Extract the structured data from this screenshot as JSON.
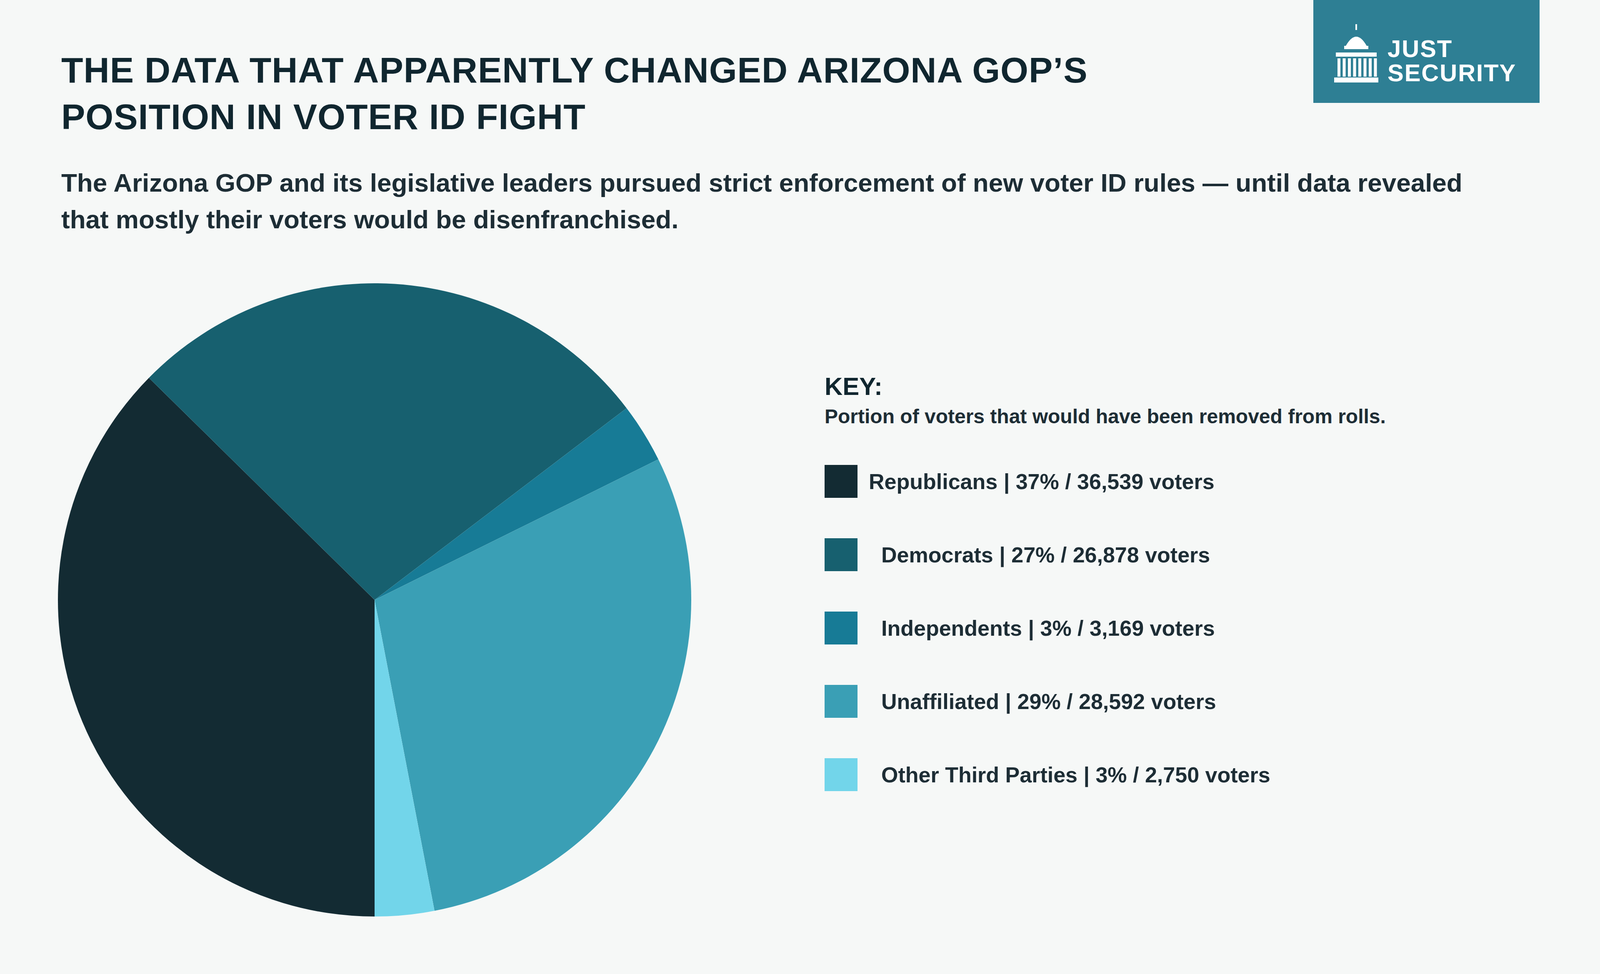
{
  "chart_data": {
    "type": "pie",
    "title": "THE DATA THAT APPARENTLY CHANGED ARIZONA GOP’S POSITION IN VOTER ID FIGHT",
    "subtitle": "The Arizona GOP and its legislative leaders pursued strict enforcement of new voter ID rules — until data revealed that mostly their voters would be disenfranchised.",
    "logo": "JUST SECURITY",
    "legend_title": "KEY:",
    "legend_subtitle": "Portion of voters that would have been removed from rolls.",
    "categories": [
      "Republicans | 37% / 36,539 voters",
      "Democrats | 27% / 26,878 voters",
      "Independents | 3% / 3,169 voters",
      "Unaffiliated | 29% / 28,592 voters",
      "Other Third Parties | 3% / 2,750 voters"
    ],
    "values": [
      37,
      27,
      3,
      29,
      3
    ],
    "colors": [
      "#132b33",
      "#17606f",
      "#177b96",
      "#3a9fb5",
      "#72d5ea"
    ],
    "legend": "right"
  }
}
